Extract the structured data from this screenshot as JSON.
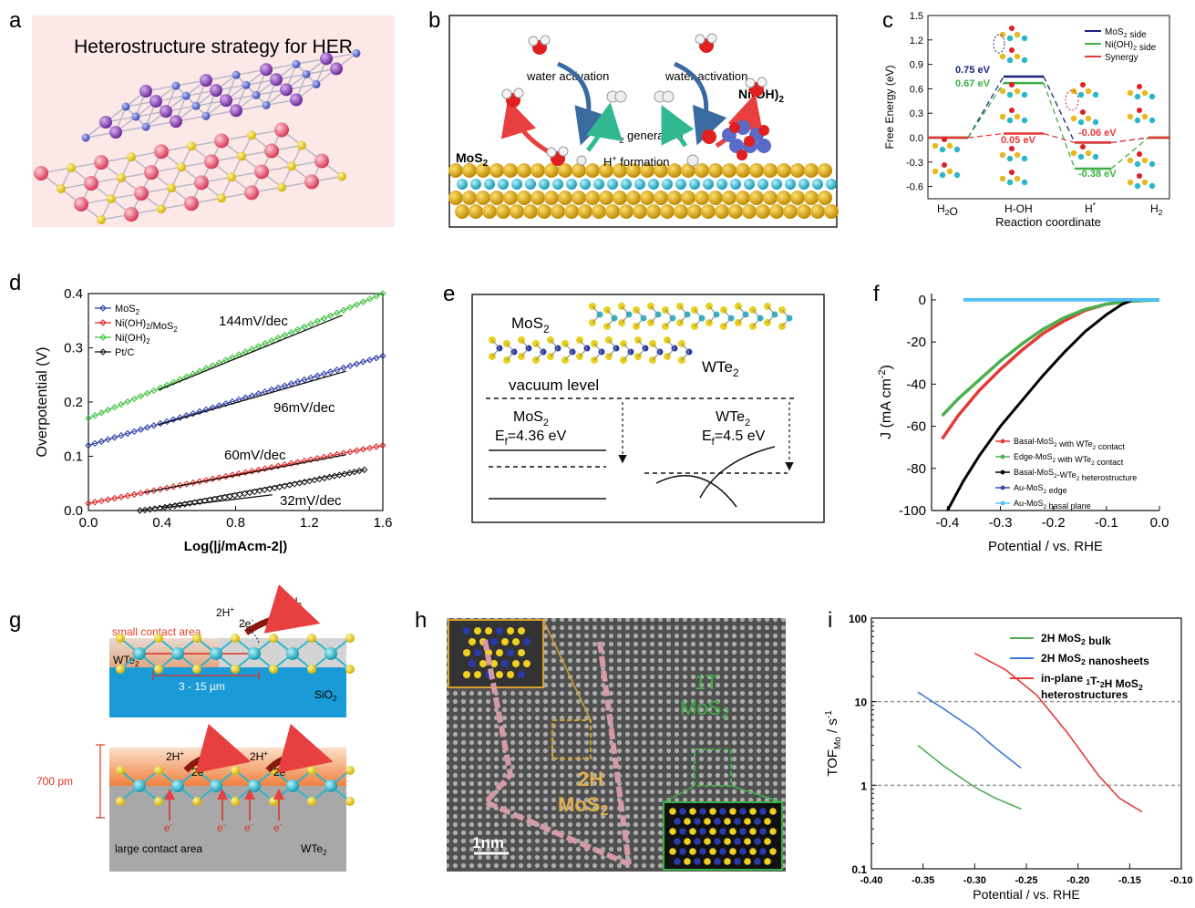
{
  "panels": {
    "a": {
      "letter": "a",
      "title": "Heterostructure strategy for HER"
    },
    "b": {
      "letter": "b",
      "left_label_1": "water activation",
      "right_label_1": "water activation",
      "h2_gen": "H",
      "h2_gen_sub": "2",
      "h2_gen_rest": " generation",
      "h_form": "H",
      "h_form_sup": "+",
      "h_form_rest": " formation",
      "mos2": "MoS",
      "mos2_sub": "2",
      "nioh": "Ni(OH)",
      "nioh_sub": "2"
    },
    "c": {
      "letter": "c",
      "ylabel": "Free Energy (eV)",
      "xlabel": "Reaction coordinate",
      "yticks": [
        "1.5",
        "1.2",
        "0.9",
        "0.6",
        "0.3",
        "0.0",
        "-0.3",
        "-0.6"
      ],
      "xcats": [
        "H2O",
        "H-OH",
        "H*",
        "H2"
      ],
      "legend": [
        "MoS2 side",
        "Ni(OH)2 side",
        "Synergy"
      ],
      "ann": [
        "0.75 eV",
        "0.67 eV",
        "0.05 eV",
        "-0.06 eV",
        "-0.38 eV"
      ]
    },
    "d": {
      "letter": "d",
      "ylabel": "Overpotential (V)",
      "xlabel": "Log(|j/mAcm-2|)",
      "yticks": [
        "0.0",
        "0.1",
        "0.2",
        "0.3",
        "0.4"
      ],
      "xticks": [
        "0.0",
        "0.4",
        "0.8",
        "1.2",
        "1.6"
      ],
      "legend": [
        "MoS2",
        "Ni(OH)2/MoS2",
        "Ni(OH)2",
        "Pt/C"
      ],
      "tafel": [
        "144mV/dec",
        "96mV/dec",
        "60mV/dec",
        "32mV/dec"
      ]
    },
    "e": {
      "letter": "e",
      "mos2": "MoS",
      "mos2_sub": "2",
      "wte2": "WTe",
      "wte2_sub": "2",
      "vac": "vacuum level",
      "ef1": "E",
      "ef1_sub": "f",
      "ef1_val": "=4.36 eV",
      "ef2_val": "=4.5 eV"
    },
    "f": {
      "letter": "f",
      "ylabel": "J (mA cm-2)",
      "xlabel": "Potential / vs. RHE",
      "yticks": [
        "0",
        "-20",
        "-40",
        "-60",
        "-80",
        "-100"
      ],
      "xticks": [
        "-0.4",
        "-0.3",
        "-0.2",
        "-0.1",
        "0.0"
      ],
      "legend": [
        "Basal-MoS2 with WTe2 contact",
        "Edge-MoS2 with WTe2 contact",
        "Basal-MoS2-WTe2 heterostructure",
        "Au-MoS2 edge",
        "Au-MoS2 basal plane"
      ]
    },
    "g": {
      "letter": "g",
      "small": "small contact area",
      "dim": "3 - 15 µm",
      "sio2": "SiO",
      "sio2_sub": "2",
      "wte2": "WTe",
      "wte2_sub": "2",
      "large": "large contact area",
      "thick": "700 pm",
      "h2": "H",
      "h2_sub": "2",
      "two_h": "2H",
      "two_e": "2e",
      "e": "e"
    },
    "h": {
      "letter": "h",
      "t1": "1T",
      "t1_b": "MoS",
      "t1_sub": "2",
      "h2": "2H",
      "h2_b": "MoS",
      "h2_sub": "2",
      "scale": "1nm"
    },
    "i": {
      "letter": "i",
      "ylabel": "TOF",
      "ylabel_sub": "Mo",
      "ylabel_rest": " / s",
      "ylabel_sup": "-1",
      "xlabel": "Potential / vs. RHE",
      "yticks": [
        "100",
        "10",
        "1",
        "0.1"
      ],
      "xticks": [
        "-0.40",
        "-0.35",
        "-0.30",
        "-0.25",
        "-0.20",
        "-0.15",
        "-0.10"
      ],
      "legend": [
        "2H MoS2 bulk",
        "2H MoS2  nanosheets",
        "in-plane 1T-2H MoS2",
        "heterostructures"
      ]
    }
  },
  "chart_data": [
    {
      "type": "line",
      "panel": "c",
      "title": "",
      "xlabel": "Reaction coordinate",
      "ylabel": "Free Energy (eV)",
      "categories": [
        "H2O",
        "H-OH",
        "H*",
        "H2"
      ],
      "ylim": [
        -0.75,
        1.5
      ],
      "series": [
        {
          "name": "MoS2 side",
          "color": "#1a237e",
          "values": [
            0,
            0.75,
            -0.06,
            0
          ]
        },
        {
          "name": "Ni(OH)2 side",
          "color": "#3cb043",
          "values": [
            0,
            0.67,
            -0.38,
            0
          ]
        },
        {
          "name": "Synergy",
          "color": "#e53935",
          "values": [
            0,
            0.05,
            -0.06,
            0
          ]
        }
      ]
    },
    {
      "type": "scatter",
      "panel": "d",
      "xlabel": "Log(|j/mAcm-2|)",
      "ylabel": "Overpotential (V)",
      "xlim": [
        0,
        1.6
      ],
      "ylim": [
        0,
        0.4
      ],
      "series": [
        {
          "name": "MoS2",
          "color": "#2a3aa8",
          "x0": 0,
          "y0": 0.12,
          "x1": 1.6,
          "y1": 0.285,
          "slope_label": "96mV/dec"
        },
        {
          "name": "Ni(OH)2/MoS2",
          "color": "#e02020",
          "x0": 0,
          "y0": 0.013,
          "x1": 1.6,
          "y1": 0.12,
          "slope_label": "60mV/dec"
        },
        {
          "name": "Ni(OH)2",
          "color": "#3cbf3c",
          "x0": 0,
          "y0": 0.17,
          "x1": 1.6,
          "y1": 0.4,
          "slope_label": "144mV/dec"
        },
        {
          "name": "Pt/C",
          "color": "#111111",
          "x0": 0.28,
          "y0": 0.0,
          "x1": 1.5,
          "y1": 0.075,
          "slope_label": "32mV/dec"
        }
      ]
    },
    {
      "type": "line",
      "panel": "f",
      "xlabel": "Potential / vs. RHE",
      "ylabel": "J (mA cm-2)",
      "xlim": [
        -0.43,
        0
      ],
      "ylim": [
        -100,
        3
      ],
      "series": [
        {
          "name": "Basal-MoS2 with WTe2 contact",
          "color": "#e53935",
          "x": [
            -0.41,
            -0.38,
            -0.34,
            -0.3,
            -0.26,
            -0.22,
            -0.18,
            -0.14,
            -0.1,
            -0.06,
            -0.02,
            0.0
          ],
          "y": [
            -66,
            -55,
            -43,
            -33,
            -24,
            -16,
            -10,
            -5,
            -2,
            -0.7,
            -0.2,
            0
          ]
        },
        {
          "name": "Edge-MoS2 with WTe2 contact",
          "color": "#4caf50",
          "x": [
            -0.41,
            -0.38,
            -0.34,
            -0.3,
            -0.26,
            -0.22,
            -0.18,
            -0.14,
            -0.1,
            -0.06,
            -0.02,
            0.0
          ],
          "y": [
            -55,
            -47,
            -38,
            -29,
            -21,
            -14,
            -8.5,
            -4.5,
            -2,
            -0.7,
            -0.2,
            0
          ]
        },
        {
          "name": "Basal-MoS2-WTe2 heterostructure",
          "color": "#000000",
          "x": [
            -0.4,
            -0.37,
            -0.34,
            -0.3,
            -0.26,
            -0.22,
            -0.18,
            -0.14,
            -0.1,
            -0.07,
            -0.05
          ],
          "y": [
            -100,
            -86,
            -74,
            -60,
            -48,
            -36,
            -25,
            -15,
            -7,
            -2,
            0
          ]
        },
        {
          "name": "Au-MoS2 edge",
          "color": "#3949ab",
          "x": [
            -0.37,
            0.0
          ],
          "y": [
            0,
            0
          ]
        },
        {
          "name": "Au-MoS2 basal plane",
          "color": "#4fc3f7",
          "x": [
            -0.37,
            0.0
          ],
          "y": [
            0,
            0
          ]
        }
      ]
    },
    {
      "type": "line",
      "panel": "i",
      "xlabel": "Potential / vs. RHE",
      "ylabel": "TOF_Mo / s-1",
      "xlim": [
        -0.4,
        -0.1
      ],
      "ylim": [
        0.1,
        100
      ],
      "yscale": "log",
      "series": [
        {
          "name": "2H MoS2 bulk",
          "color": "#4caf50",
          "x": [
            -0.355,
            -0.33,
            -0.3,
            -0.28,
            -0.255
          ],
          "y": [
            3.0,
            1.7,
            0.95,
            0.7,
            0.52
          ]
        },
        {
          "name": "2H MoS2  nanosheets",
          "color": "#3a7bd5",
          "x": [
            -0.355,
            -0.33,
            -0.3,
            -0.28,
            -0.255
          ],
          "y": [
            13,
            8.2,
            4.6,
            2.8,
            1.6
          ]
        },
        {
          "name": "in-plane 1T-2H MoS2 heterostructures",
          "color": "#e53935",
          "x": [
            -0.3,
            -0.27,
            -0.24,
            -0.21,
            -0.18,
            -0.16,
            -0.138
          ],
          "y": [
            38,
            24,
            12,
            4.2,
            1.3,
            0.7,
            0.48
          ]
        }
      ]
    }
  ],
  "colors": {
    "bg_a": "#fde8e8",
    "mos2_yellow": "#e8b820",
    "mo_cyan": "#2bb7c9",
    "wte2_grey": "#a8a8a8",
    "sio2_blue": "#1a9ad6"
  }
}
